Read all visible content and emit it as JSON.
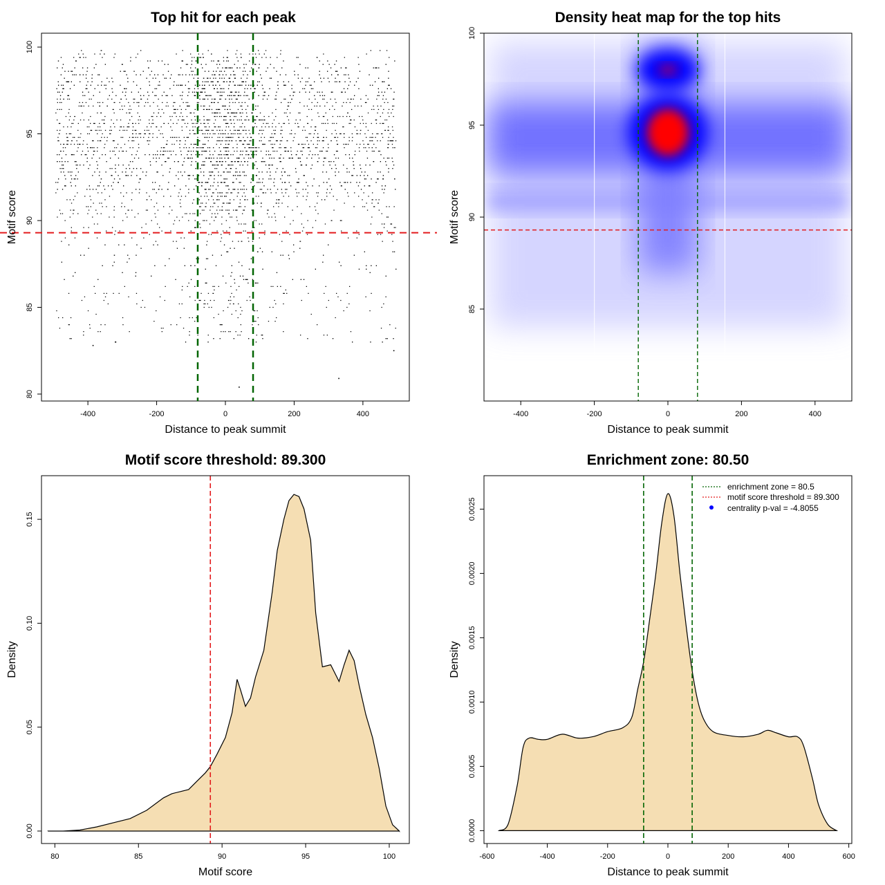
{
  "colors": {
    "threshold": "#e31a1c",
    "zone": "#006400",
    "fill": "#f5deb3",
    "points": "#000000",
    "heat_low": "#ffffff",
    "heat_mid": "#0000ff",
    "heat_high": "#ff0000"
  },
  "chart_data": [
    {
      "type": "scatter",
      "title": "Top hit for each peak",
      "xlabel": "Distance to peak summit",
      "ylabel": "Motif score",
      "xlim": [
        -535,
        535
      ],
      "ylim": [
        79.6,
        100.8
      ],
      "xticks": [
        -400,
        -200,
        0,
        200,
        400
      ],
      "yticks": [
        80,
        85,
        90,
        95,
        100
      ],
      "threshold_y": 89.3,
      "zone_x": [
        -80.5,
        80.5
      ],
      "density_note": "thousands of points spanning x -500..500, y 80..100, concentrated around x=0 and y 92-96",
      "sample_points": [
        {
          "x": -385,
          "y": 82.8
        },
        {
          "x": -320,
          "y": 83.0
        },
        {
          "x": 40,
          "y": 80.4
        },
        {
          "x": 330,
          "y": 80.9
        },
        {
          "x": 490,
          "y": 82.5
        }
      ]
    },
    {
      "type": "heatmap",
      "title": "Density heat map for the top hits",
      "xlabel": "Distance to peak summit",
      "ylabel": "Motif score",
      "xlim": [
        -500,
        500
      ],
      "ylim": [
        80,
        100
      ],
      "xticks": [
        -400,
        -200,
        0,
        200,
        400
      ],
      "yticks": [
        85,
        90,
        95,
        100
      ],
      "threshold_y": 89.3,
      "zone_x": [
        -80.5,
        80.5
      ],
      "hotspot": {
        "x": 0,
        "y": 94.6
      },
      "secondary_hotspot": {
        "x": 0,
        "y": 98.0
      },
      "band_y": [
        94.5,
        90.9
      ]
    },
    {
      "type": "area",
      "title": "Motif score threshold: 89.300",
      "xlabel": "Motif score",
      "ylabel": "Density",
      "xlim": [
        79.2,
        101.2
      ],
      "ylim": [
        -0.006,
        0.171
      ],
      "xticks": [
        80,
        85,
        90,
        95,
        100
      ],
      "yticks": [
        0.0,
        0.05,
        0.1,
        0.15
      ],
      "ytick_labels": [
        "0.00",
        "0.05",
        "0.10",
        "0.15"
      ],
      "threshold_x": 89.3,
      "x": [
        79.6,
        80.5,
        81.5,
        82.5,
        83.5,
        84.5,
        85.5,
        86.5,
        87.0,
        87.5,
        88.0,
        88.5,
        89.0,
        89.3,
        89.7,
        90.2,
        90.6,
        90.9,
        91.1,
        91.4,
        91.7,
        92.0,
        92.5,
        93.0,
        93.3,
        93.7,
        94.0,
        94.3,
        94.6,
        94.9,
        95.3,
        95.6,
        96.0,
        96.5,
        97.0,
        97.3,
        97.6,
        97.9,
        98.2,
        98.6,
        99.0,
        99.4,
        99.8,
        100.2,
        100.6
      ],
      "y": [
        0.0,
        0.0,
        0.0005,
        0.002,
        0.004,
        0.006,
        0.01,
        0.016,
        0.018,
        0.019,
        0.02,
        0.024,
        0.028,
        0.031,
        0.037,
        0.045,
        0.057,
        0.073,
        0.068,
        0.06,
        0.064,
        0.074,
        0.087,
        0.115,
        0.135,
        0.15,
        0.159,
        0.162,
        0.161,
        0.155,
        0.14,
        0.105,
        0.079,
        0.08,
        0.072,
        0.08,
        0.087,
        0.082,
        0.07,
        0.056,
        0.045,
        0.03,
        0.012,
        0.003,
        0.0
      ]
    },
    {
      "type": "area",
      "title": "Enrichment zone: 80.50",
      "xlabel": "Distance to peak summit",
      "ylabel": "Density",
      "xlim": [
        -610,
        610
      ],
      "ylim": [
        -0.0001,
        0.00276
      ],
      "xticks": [
        -600,
        -400,
        -200,
        0,
        200,
        400,
        600
      ],
      "yticks": [
        0.0,
        0.0005,
        0.001,
        0.0015,
        0.002,
        0.0025
      ],
      "ytick_labels": [
        "0.0000",
        "0.0005",
        "0.0010",
        "0.0015",
        "0.0020",
        "0.0025"
      ],
      "zone_x": [
        -80.5,
        80.5
      ],
      "x": [
        -560,
        -530,
        -500,
        -480,
        -460,
        -430,
        -400,
        -350,
        -300,
        -250,
        -200,
        -150,
        -120,
        -100,
        -80,
        -60,
        -40,
        -20,
        0,
        20,
        40,
        60,
        80,
        100,
        120,
        150,
        200,
        250,
        300,
        330,
        360,
        400,
        430,
        450,
        480,
        500,
        530,
        560
      ],
      "y": [
        0.0,
        5e-05,
        0.00035,
        0.00065,
        0.00072,
        0.00071,
        0.00071,
        0.00075,
        0.00072,
        0.00073,
        0.00077,
        0.0008,
        0.00088,
        0.0011,
        0.00132,
        0.00165,
        0.002,
        0.0024,
        0.00262,
        0.00245,
        0.002,
        0.0016,
        0.00125,
        0.001,
        0.00086,
        0.00077,
        0.00074,
        0.00073,
        0.00075,
        0.00078,
        0.00076,
        0.00073,
        0.00073,
        0.00066,
        0.0004,
        0.0002,
        5e-05,
        0.0
      ],
      "legend": [
        {
          "label": "enrichment zone = 80.5",
          "style": "dotted",
          "color": "#006400"
        },
        {
          "label": "motif score threshold = 89.300",
          "style": "dotted",
          "color": "#e31a1c"
        },
        {
          "label": "centrality p-val = -4.8055",
          "style": "point",
          "color": "#0000ff"
        }
      ],
      "legend_position": "top-right"
    }
  ]
}
